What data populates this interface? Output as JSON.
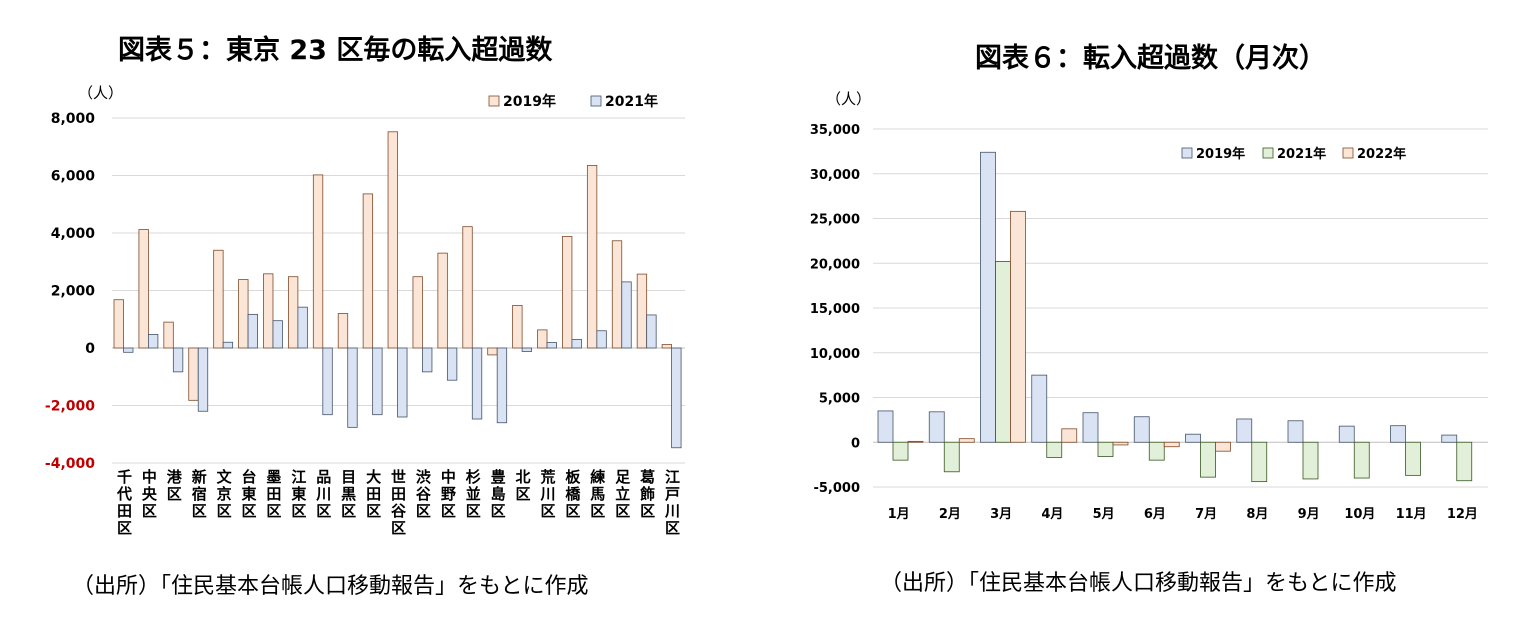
{
  "colors": {
    "orange": "#FBE5D6",
    "orange_edge": "#7F4B2A",
    "blue": "#DAE3F3",
    "blue_edge": "#44546A",
    "green": "#E2F0D9",
    "green_edge": "#385723",
    "grid": "#D9D9D9",
    "neg_label": "#C00000"
  },
  "chart_data": [
    {
      "type": "bar",
      "title": "図表５：東京 23 区毎の転入超過数",
      "unit": "（人）",
      "source": "（出所）「住民基本台帳人口移動報告」をもとに作成",
      "categories": [
        "千代田区",
        "中央区",
        "港区",
        "新宿区",
        "文京区",
        "台東区",
        "墨田区",
        "江東区",
        "品川区",
        "目黒区",
        "大田区",
        "世田谷区",
        "渋谷区",
        "中野区",
        "杉並区",
        "豊島区",
        "北区",
        "荒川区",
        "板橋区",
        "練馬区",
        "足立区",
        "葛飾区",
        "江戸川区"
      ],
      "ylim": [
        -4000,
        8000
      ],
      "ticks": [
        "8,000",
        "6,000",
        "4,000",
        "2,000",
        "0",
        "-2,000",
        "-4,000"
      ],
      "legend_placement": "top-right",
      "grid": true,
      "series": [
        {
          "name": "2019年",
          "values": [
            1680,
            4120,
            900,
            -1820,
            3400,
            2380,
            2580,
            2480,
            6020,
            1200,
            5360,
            7520,
            2480,
            3300,
            4220,
            -240,
            1480,
            630,
            3880,
            6350,
            3730,
            2570,
            120
          ]
        },
        {
          "name": "2021年",
          "values": [
            -150,
            470,
            -830,
            -2200,
            200,
            1170,
            950,
            1420,
            -2320,
            -2760,
            -2320,
            -2400,
            -830,
            -1120,
            -2470,
            -2600,
            -120,
            190,
            300,
            600,
            2300,
            1150,
            -3470
          ]
        }
      ]
    },
    {
      "type": "bar",
      "title": "図表６：転入超過数（月次）",
      "unit": "（人）",
      "source": "（出所）「住民基本台帳人口移動報告」をもとに作成",
      "categories": [
        "1月",
        "2月",
        "3月",
        "4月",
        "5月",
        "6月",
        "7月",
        "8月",
        "9月",
        "10月",
        "11月",
        "12月"
      ],
      "ylim": [
        -5000,
        35000
      ],
      "ticks": [
        "35,000",
        "30,000",
        "25,000",
        "20,000",
        "15,000",
        "10,000",
        "5,000",
        "0",
        "-5,000"
      ],
      "legend_placement": "top",
      "grid": true,
      "series": [
        {
          "name": "2019年",
          "values": [
            3500,
            3400,
            32400,
            7500,
            3300,
            2850,
            900,
            2600,
            2400,
            1800,
            1850,
            800
          ]
        },
        {
          "name": "2021年",
          "values": [
            -2000,
            -3300,
            20200,
            -1700,
            -1600,
            -2000,
            -3900,
            -4400,
            -4100,
            -4000,
            -3700,
            -4300
          ]
        },
        {
          "name": "2022年",
          "values": [
            100,
            400,
            25800,
            1500,
            -300,
            -500,
            -1000,
            null,
            null,
            null,
            null,
            null
          ]
        }
      ]
    }
  ]
}
